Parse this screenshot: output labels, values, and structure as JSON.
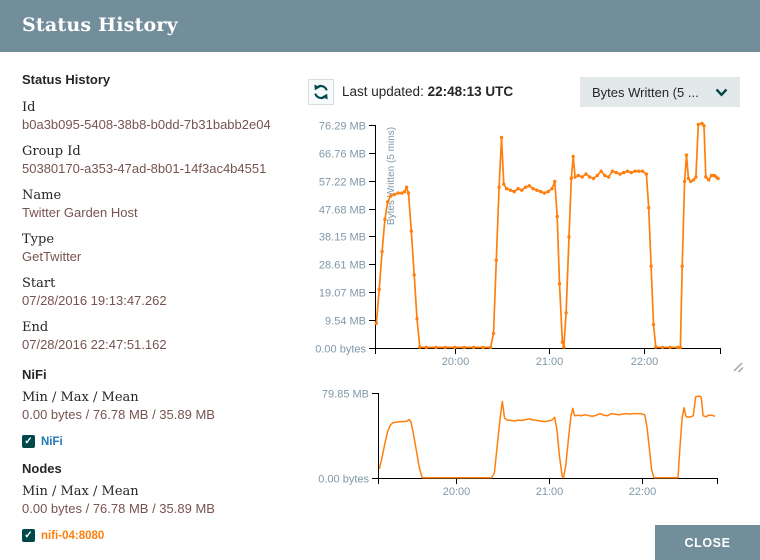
{
  "dialog": {
    "title": "Status History",
    "close_label": "CLOSE"
  },
  "details_panel": {
    "heading": "Status History",
    "fields": [
      {
        "label": "Id",
        "value": "b0a3b095-5408-38b8-b0dd-7b31babb2e04"
      },
      {
        "label": "Group Id",
        "value": "50380170-a353-47ad-8b01-14f3ac4b4551"
      },
      {
        "label": "Name",
        "value": "Twitter Garden Host"
      },
      {
        "label": "Type",
        "value": "GetTwitter"
      },
      {
        "label": "Start",
        "value": "07/28/2016 19:13:47.262"
      },
      {
        "label": "End",
        "value": "07/28/2016 22:47:51.162"
      }
    ],
    "nifi_section": {
      "heading": "NiFi",
      "stat_label": "Min / Max / Mean",
      "stat_value": "0.00 bytes / 76.78 MB / 35.89 MB",
      "legend": {
        "label": "NiFi",
        "checked": true,
        "color": "#1f77b4"
      }
    },
    "nodes_section": {
      "heading": "Nodes",
      "stat_label": "Min / Max / Mean",
      "stat_value": "0.00 bytes / 76.78 MB / 35.89 MB",
      "legend": {
        "label": "nifi-04:8080",
        "checked": true,
        "color": "#ff7f0e"
      }
    }
  },
  "toolbar": {
    "last_updated_label": "Last updated:",
    "last_updated_value": "22:48:13 UTC",
    "metric_dropdown_value": "Bytes Written (5 ..."
  },
  "icons": {
    "check": "✓",
    "refresh": "circular-arrows",
    "chevron_down": "chevron-down",
    "resize": "diagonal-grip"
  },
  "chart_data": {
    "type": "line",
    "title": "",
    "xlabel": "",
    "ylabel": "Bytes Written (5 mins)",
    "grid": false,
    "legend_position": "left-panel",
    "axis_color": "#000000",
    "axis_text_color": "#7f98a8",
    "x_domain_hours": [
      19.155,
      22.81
    ],
    "x_ticks": [
      {
        "hour": 20,
        "label": "20:00"
      },
      {
        "hour": 21,
        "label": "21:00"
      },
      {
        "hour": 22,
        "label": "22:00"
      }
    ],
    "series": [
      {
        "name": "NiFi",
        "color": "#1f77b4"
      },
      {
        "name": "nifi-04:8080",
        "color": "#ff7f0e"
      }
    ],
    "visible_line_series": "nifi-04:8080",
    "main_chart": {
      "ylim": [
        0,
        76.29
      ],
      "y_ticks": [
        {
          "value": 0,
          "label": "0.00 bytes"
        },
        {
          "value": 9.54,
          "label": "9.54 MB"
        },
        {
          "value": 19.07,
          "label": "19.07 MB"
        },
        {
          "value": 28.61,
          "label": "28.61 MB"
        },
        {
          "value": 38.15,
          "label": "38.15 MB"
        },
        {
          "value": 47.68,
          "label": "47.68 MB"
        },
        {
          "value": 57.22,
          "label": "57.22 MB"
        },
        {
          "value": 66.76,
          "label": "66.76 MB"
        },
        {
          "value": 76.29,
          "label": "76.29 MB"
        }
      ]
    },
    "brush_chart": {
      "ylim": [
        0,
        79.85
      ],
      "y_ticks": [
        {
          "value": 79.85,
          "label": "79.85 MB"
        },
        {
          "value": 0,
          "label": "0.00 bytes"
        }
      ]
    },
    "points_hour_mb": [
      [
        19.17,
        8.5
      ],
      [
        19.2,
        20
      ],
      [
        19.23,
        33
      ],
      [
        19.26,
        44
      ],
      [
        19.29,
        50
      ],
      [
        19.32,
        52
      ],
      [
        19.36,
        52.5
      ],
      [
        19.4,
        53
      ],
      [
        19.44,
        53
      ],
      [
        19.47,
        53.5
      ],
      [
        19.49,
        55
      ],
      [
        19.51,
        53
      ],
      [
        19.54,
        40
      ],
      [
        19.57,
        25
      ],
      [
        19.6,
        10
      ],
      [
        19.63,
        0.3
      ],
      [
        19.7,
        0.2
      ],
      [
        19.8,
        0.2
      ],
      [
        19.9,
        0.2
      ],
      [
        20.0,
        0.2
      ],
      [
        20.1,
        0.2
      ],
      [
        20.2,
        0.2
      ],
      [
        20.3,
        0.2
      ],
      [
        20.38,
        0.2
      ],
      [
        20.41,
        5
      ],
      [
        20.44,
        30
      ],
      [
        20.47,
        55
      ],
      [
        20.495,
        72
      ],
      [
        20.52,
        56
      ],
      [
        20.55,
        54.5
      ],
      [
        20.59,
        54
      ],
      [
        20.63,
        53.5
      ],
      [
        20.67,
        54.5
      ],
      [
        20.71,
        54
      ],
      [
        20.75,
        55
      ],
      [
        20.79,
        55.5
      ],
      [
        20.83,
        54.5
      ],
      [
        20.87,
        54
      ],
      [
        20.91,
        53.5
      ],
      [
        20.95,
        53
      ],
      [
        20.99,
        53.5
      ],
      [
        21.03,
        54.5
      ],
      [
        21.06,
        57
      ],
      [
        21.085,
        45
      ],
      [
        21.11,
        22
      ],
      [
        21.14,
        2
      ],
      [
        21.155,
        0.3
      ],
      [
        21.18,
        12
      ],
      [
        21.21,
        38
      ],
      [
        21.235,
        58
      ],
      [
        21.255,
        65.5
      ],
      [
        21.275,
        58.5
      ],
      [
        21.31,
        59
      ],
      [
        21.35,
        58.5
      ],
      [
        21.39,
        59.5
      ],
      [
        21.43,
        58.5
      ],
      [
        21.47,
        58
      ],
      [
        21.51,
        59
      ],
      [
        21.55,
        60.5
      ],
      [
        21.59,
        59
      ],
      [
        21.63,
        58.5
      ],
      [
        21.67,
        60.5
      ],
      [
        21.71,
        60
      ],
      [
        21.75,
        59.5
      ],
      [
        21.79,
        60
      ],
      [
        21.83,
        60.5
      ],
      [
        21.87,
        60
      ],
      [
        21.91,
        60.5
      ],
      [
        21.95,
        60.5
      ],
      [
        21.99,
        60.5
      ],
      [
        22.03,
        59.5
      ],
      [
        22.055,
        48
      ],
      [
        22.08,
        28
      ],
      [
        22.105,
        8
      ],
      [
        22.13,
        0.3
      ],
      [
        22.2,
        0.2
      ],
      [
        22.28,
        0.2
      ],
      [
        22.36,
        0.2
      ],
      [
        22.39,
        0.2
      ],
      [
        22.41,
        28
      ],
      [
        22.435,
        57
      ],
      [
        22.455,
        66
      ],
      [
        22.475,
        58
      ],
      [
        22.5,
        57
      ],
      [
        22.53,
        57.5
      ],
      [
        22.555,
        58.5
      ],
      [
        22.58,
        76.5
      ],
      [
        22.62,
        76.8
      ],
      [
        22.64,
        76
      ],
      [
        22.66,
        58.5
      ],
      [
        22.69,
        57.5
      ],
      [
        22.72,
        59
      ],
      [
        22.75,
        59
      ],
      [
        22.77,
        58.5
      ],
      [
        22.79,
        58
      ]
    ]
  }
}
